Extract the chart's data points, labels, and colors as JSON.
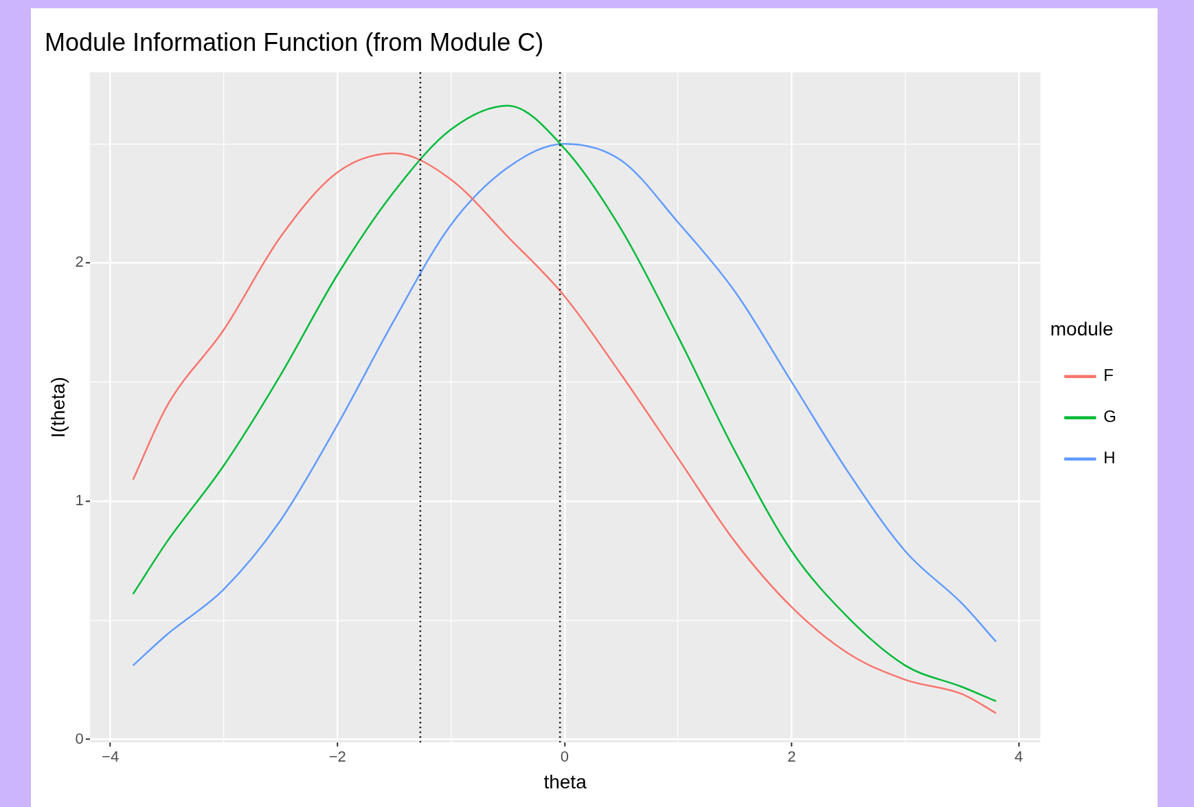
{
  "chart_data": {
    "type": "line",
    "title": "Module Information Function (from Module C)",
    "xlabel": "theta",
    "ylabel": "I(theta)",
    "legend_title": "module",
    "legend": "right",
    "grid": true,
    "marker": "none",
    "line_style": "solid",
    "x": [
      -3.8,
      -3.5,
      -3,
      -2.5,
      -2,
      -1.5,
      -1,
      -0.5,
      0,
      0.5,
      1,
      1.5,
      2,
      2.5,
      3,
      3.5,
      3.8
    ],
    "xlim": [
      -4.18,
      4.19
    ],
    "xticks": [
      -4,
      {
        "value": -3,
        "label": null
      },
      -2,
      {
        "value": -1,
        "label": null
      },
      0,
      {
        "value": 1,
        "label": null
      },
      2,
      {
        "value": 3,
        "label": null
      },
      4
    ],
    "ylim": [
      -0.013,
      2.8
    ],
    "yticks": [
      0,
      {
        "value": 0.5,
        "label": null
      },
      1,
      {
        "value": 1.5,
        "label": null
      },
      2,
      {
        "value": 2.5,
        "label": null
      }
    ],
    "series": [
      {
        "name": "F",
        "color": "#f8766d",
        "values": [
          1.09,
          1.4,
          1.72,
          2.11,
          2.38,
          2.46,
          2.35,
          2.11,
          1.86,
          1.53,
          1.18,
          0.83,
          0.555,
          0.36,
          0.25,
          0.19,
          0.11
        ]
      },
      {
        "name": "G",
        "color": "#00ba38",
        "values": [
          0.61,
          0.83,
          1.15,
          1.53,
          1.95,
          2.3,
          2.56,
          2.66,
          2.48,
          2.14,
          1.69,
          1.21,
          0.79,
          0.51,
          0.31,
          0.22,
          0.16
        ]
      },
      {
        "name": "H",
        "color": "#619cff",
        "values": [
          0.31,
          0.44,
          0.63,
          0.92,
          1.32,
          1.76,
          2.16,
          2.4,
          2.5,
          2.43,
          2.17,
          1.88,
          1.5,
          1.12,
          0.79,
          0.57,
          0.41
        ]
      }
    ],
    "ref_lines": [
      {
        "axis": "x",
        "value": -1.27,
        "line_style": "dotted",
        "color": "#000000"
      },
      {
        "axis": "x",
        "value": -0.04,
        "line_style": "dotted",
        "color": "#000000"
      }
    ]
  }
}
